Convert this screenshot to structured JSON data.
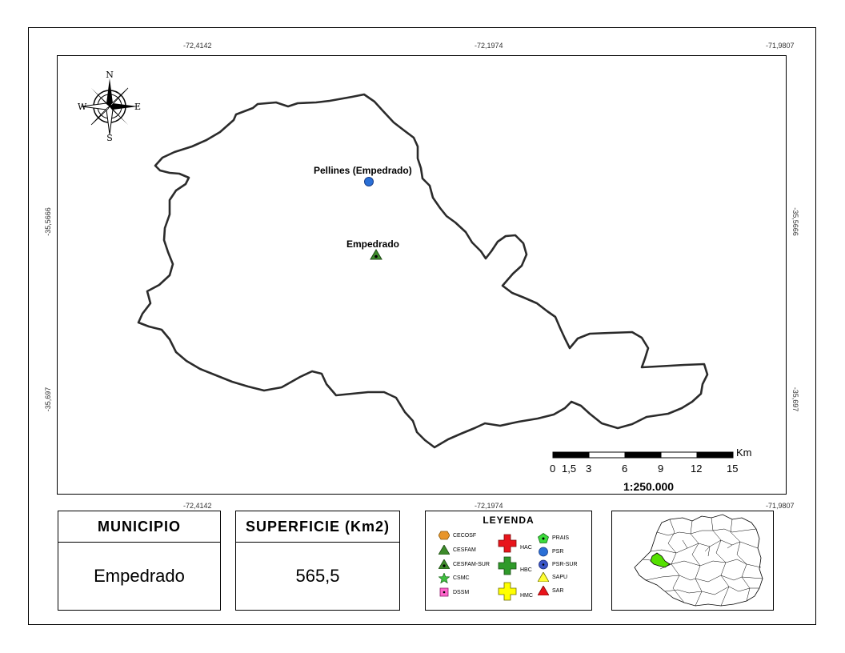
{
  "map": {
    "coordinates": {
      "top": [
        "-72,4142",
        "-72,1974",
        "-71,9807"
      ],
      "bottom": [
        "-72,4142",
        "-72,1974",
        "-71,9807"
      ],
      "left": [
        "-35,5666",
        "-35,697"
      ],
      "right": [
        "-35,5666",
        "-35,697"
      ]
    },
    "compass": {
      "n": "N",
      "s": "S",
      "e": "E",
      "w": "W"
    },
    "places": [
      {
        "name": "Pellines (Empedrado)",
        "symbol": "PSR"
      },
      {
        "name": "Empedrado",
        "symbol": "CESFAM-SUR"
      }
    ],
    "scale_bar": {
      "unit": "Km",
      "ticks": [
        "0",
        "1,5",
        "3",
        "6",
        "9",
        "12",
        "15"
      ],
      "ratio": "1:250.000"
    }
  },
  "info": {
    "municipio_label": "MUNICIPIO",
    "municipio_value": "Empedrado",
    "superficie_label": "SUPERFICIE (Km2)",
    "superficie_value": "565,5"
  },
  "legend": {
    "title": "LEYENDA",
    "items": [
      {
        "label": "CECOSF",
        "icon": "orange-hexagon",
        "color": "#e8952a"
      },
      {
        "label": "CESFAM",
        "icon": "green-triangle",
        "color": "#3d8b2a"
      },
      {
        "label": "CESFAM-SUR",
        "icon": "green-triangle-dot",
        "color": "#3d8b2a"
      },
      {
        "label": "CSMC",
        "icon": "green-star",
        "color": "#3fbf3f"
      },
      {
        "label": "DSSM",
        "icon": "pink-square",
        "color": "#ff66cc"
      },
      {
        "label": "HAC",
        "icon": "red-cross",
        "color": "#e8141b"
      },
      {
        "label": "HBC",
        "icon": "green-cross",
        "color": "#2f9a2a"
      },
      {
        "label": "HMC",
        "icon": "yellow-cross",
        "color": "#ffff00"
      },
      {
        "label": "PRAIS",
        "icon": "green-pentagon",
        "color": "#3cdc3c"
      },
      {
        "label": "PSR",
        "icon": "blue-circle",
        "color": "#2a6fd6"
      },
      {
        "label": "PSR-SUR",
        "icon": "blue-circle-dot",
        "color": "#3b56c8"
      },
      {
        "label": "SAPU",
        "icon": "yellow-triangle",
        "color": "#ffff33"
      },
      {
        "label": "SAR",
        "icon": "red-triangle",
        "color": "#e8141b"
      }
    ]
  },
  "inset": {
    "highlight_color": "#55e000"
  }
}
